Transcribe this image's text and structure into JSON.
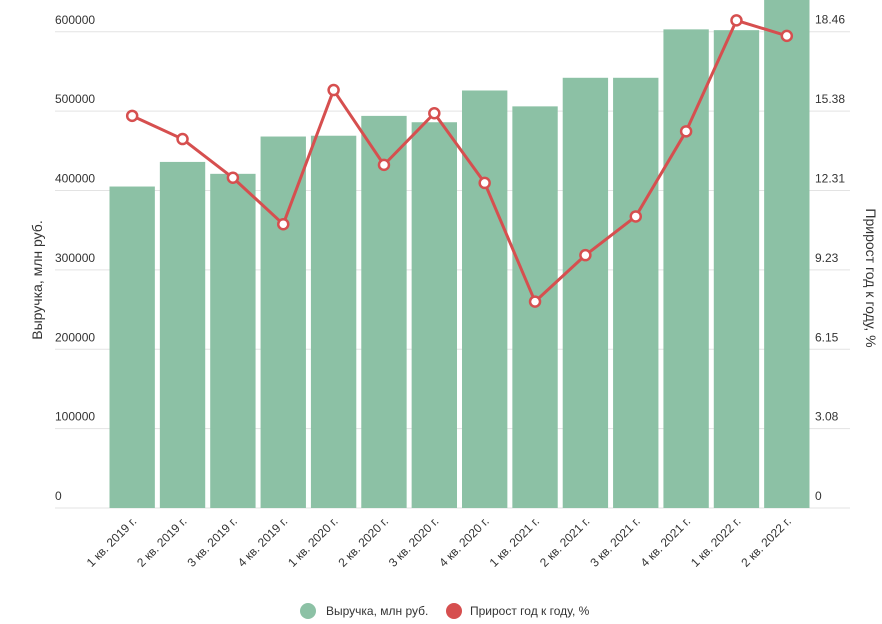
{
  "chart_data": {
    "type": "bar+line",
    "categories": [
      "1 кв. 2019 г.",
      "2 кв. 2019 г.",
      "3 кв. 2019 г.",
      "4 кв. 2019 г.",
      "1 кв. 2020 г.",
      "2 кв. 2020 г.",
      "3 кв. 2020 г.",
      "4 кв. 2020 г.",
      "1 кв. 2021 г.",
      "2 кв. 2021 г.",
      "3 кв. 2021 г.",
      "4 кв. 2021 г.",
      "1 кв. 2022 г.",
      "2 кв. 2022 г."
    ],
    "series": [
      {
        "name": "Выручка, млн руб.",
        "type": "bar",
        "axis": "left",
        "color": "#8cc1a5",
        "values": [
          405000,
          436000,
          421000,
          468000,
          469000,
          494000,
          486000,
          526000,
          506000,
          542000,
          542000,
          603000,
          602000,
          640000
        ]
      },
      {
        "name": "Прирост год к году, %",
        "type": "line",
        "axis": "right",
        "color": "#d64f4f",
        "values": [
          15.2,
          14.3,
          12.8,
          11.0,
          16.2,
          13.3,
          15.3,
          12.6,
          8.0,
          9.8,
          11.3,
          14.6,
          18.9,
          18.3
        ]
      }
    ],
    "y_left": {
      "label": "Выручка, млн руб.",
      "range": [
        0,
        640000
      ],
      "ticks": [
        "0",
        "100000",
        "200000",
        "300000",
        "400000",
        "500000",
        "600000"
      ],
      "tick_values": [
        0,
        100000,
        200000,
        300000,
        400000,
        500000,
        600000
      ]
    },
    "y_right": {
      "label": "Прирост год к году, %",
      "range": [
        0,
        19.69
      ],
      "ticks": [
        "0",
        "3.08",
        "6.15",
        "9.23",
        "12.31",
        "15.38",
        "18.46"
      ],
      "tick_values": [
        0,
        3.08,
        6.15,
        9.23,
        12.31,
        15.38,
        18.46
      ]
    },
    "grid": true,
    "legend_position": "bottom-center"
  }
}
